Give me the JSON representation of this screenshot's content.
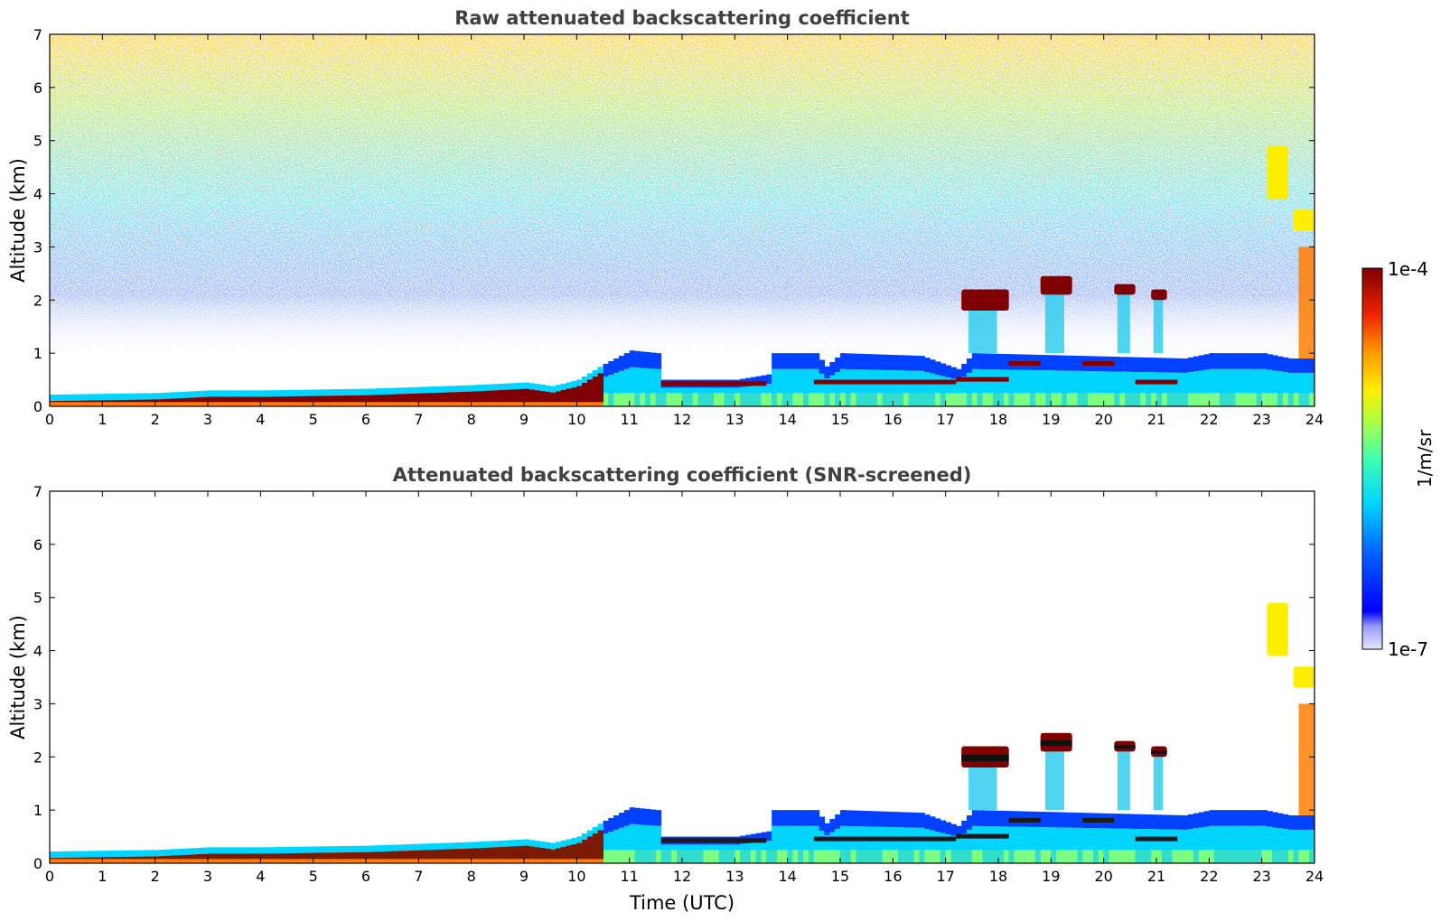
{
  "colors": {
    "dark_red": "#7f0000",
    "red": "#e41a1c",
    "orange": "#ff7f00",
    "yellow": "#ffee00",
    "green": "#7fff7f",
    "cyan": "#00d4ff",
    "blue": "#0040ff",
    "deep_blue": "#0000c8",
    "pale": "#e6e6ff",
    "title_gray": "#404040"
  },
  "colorbar": {
    "label": "1/m/sr",
    "max_label": "1e-4",
    "min_label": "1e-7",
    "scale": "log",
    "range": [
      1e-07,
      0.0001
    ]
  },
  "chart_data": [
    {
      "type": "heatmap",
      "title": "Raw attenuated backscattering coefficient",
      "xlabel": "",
      "ylabel": "Altitude (km)",
      "xlim": [
        0,
        24
      ],
      "ylim": [
        0,
        7
      ],
      "xticks": [
        "0",
        "1",
        "2",
        "3",
        "4",
        "5",
        "6",
        "7",
        "8",
        "9",
        "10",
        "11",
        "12",
        "13",
        "14",
        "15",
        "16",
        "17",
        "18",
        "19",
        "20",
        "21",
        "22",
        "23",
        "24"
      ],
      "yticks": [
        "0",
        "1",
        "2",
        "3",
        "4",
        "5",
        "6",
        "7"
      ],
      "noise": "high above 3 km, background noise visible"
    },
    {
      "type": "heatmap",
      "title": "Attenuated backscattering coefficient (SNR-screened)",
      "xlabel": "Time (UTC)",
      "ylabel": "Altitude (km)",
      "xlim": [
        0,
        24
      ],
      "ylim": [
        0,
        7
      ],
      "xticks": [
        "0",
        "1",
        "2",
        "3",
        "4",
        "5",
        "6",
        "7",
        "8",
        "9",
        "10",
        "11",
        "12",
        "13",
        "14",
        "15",
        "16",
        "17",
        "18",
        "19",
        "20",
        "21",
        "22",
        "23",
        "24"
      ],
      "yticks": [
        "0",
        "1",
        "2",
        "3",
        "4",
        "5",
        "6",
        "7"
      ],
      "noise": "screened (white background)"
    }
  ],
  "features": {
    "boundary_layer_top_km": [
      [
        0,
        0.22
      ],
      [
        2,
        0.25
      ],
      [
        3,
        0.3
      ],
      [
        4,
        0.3
      ],
      [
        6,
        0.33
      ],
      [
        8,
        0.4
      ],
      [
        9,
        0.45
      ],
      [
        9.5,
        0.38
      ],
      [
        10,
        0.5
      ],
      [
        10.5,
        0.8
      ],
      [
        11,
        1.05
      ],
      [
        11.5,
        1.0
      ],
      [
        11.6,
        0.5
      ],
      [
        13,
        0.5
      ],
      [
        13.6,
        0.6
      ],
      [
        13.7,
        1.0
      ],
      [
        14.5,
        1.0
      ],
      [
        14.7,
        0.75
      ],
      [
        15,
        1.0
      ],
      [
        16.5,
        0.95
      ],
      [
        17.2,
        0.7
      ],
      [
        17.5,
        1.0
      ],
      [
        21.5,
        0.9
      ],
      [
        22,
        1.0
      ],
      [
        23,
        1.0
      ],
      [
        23.5,
        0.9
      ],
      [
        24,
        0.9
      ]
    ],
    "cloud_layers": [
      {
        "t0": 17.3,
        "t1": 18.2,
        "z0": 1.8,
        "z1": 2.2
      },
      {
        "t0": 18.8,
        "t1": 19.4,
        "z0": 2.1,
        "z1": 2.45
      },
      {
        "t0": 20.2,
        "t1": 20.6,
        "z0": 2.1,
        "z1": 2.3
      },
      {
        "t0": 20.9,
        "t1": 21.2,
        "z0": 2.0,
        "z1": 2.2
      },
      {
        "t0": 23.1,
        "t1": 23.5,
        "z0": 3.9,
        "z1": 4.9
      },
      {
        "t0": 23.6,
        "t1": 24.0,
        "z0": 3.3,
        "z1": 3.7
      }
    ]
  }
}
